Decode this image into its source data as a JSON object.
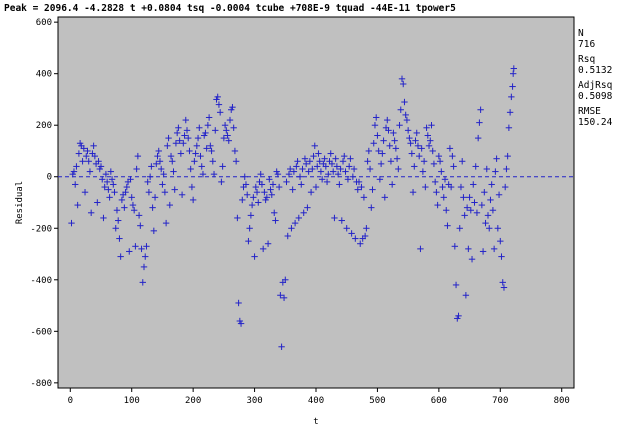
{
  "chart_data": {
    "type": "scatter",
    "title": "Peak = 2096.4 -4.2828 t +0.0804 tsq -0.0004 tcube +708E-9 tquad -44E-11 tpower5",
    "xlabel": "t",
    "ylabel": "Residual",
    "xlim": [
      -20,
      820
    ],
    "ylim": [
      -820,
      620
    ],
    "x_ticks": [
      0,
      100,
      200,
      300,
      400,
      500,
      600,
      700,
      800
    ],
    "y_ticks": [
      -800,
      -600,
      -400,
      -200,
      0,
      200,
      400,
      600
    ],
    "grid": false,
    "reference_line": 0,
    "plot_background": "#c0c0c0",
    "marker_color": "#2323c8",
    "marker": "plus",
    "stats": [
      {
        "label": "N",
        "value": "716"
      },
      {
        "label": "Rsq",
        "value": "0.5132"
      },
      {
        "label": "AdjRsq",
        "value": "0.5098"
      },
      {
        "label": "RMSE",
        "value": "150.24"
      }
    ],
    "points": [
      [
        2,
        -180
      ],
      [
        4,
        10
      ],
      [
        6,
        20
      ],
      [
        8,
        -30
      ],
      [
        10,
        40
      ],
      [
        12,
        -110
      ],
      [
        14,
        90
      ],
      [
        16,
        130
      ],
      [
        18,
        120
      ],
      [
        20,
        60
      ],
      [
        22,
        110
      ],
      [
        24,
        -60
      ],
      [
        26,
        80
      ],
      [
        28,
        100
      ],
      [
        30,
        60
      ],
      [
        32,
        20
      ],
      [
        34,
        -140
      ],
      [
        36,
        90
      ],
      [
        38,
        120
      ],
      [
        40,
        80
      ],
      [
        42,
        50
      ],
      [
        44,
        -100
      ],
      [
        46,
        60
      ],
      [
        48,
        30
      ],
      [
        50,
        40
      ],
      [
        52,
        -10
      ],
      [
        54,
        -160
      ],
      [
        56,
        -40
      ],
      [
        58,
        10
      ],
      [
        60,
        -20
      ],
      [
        62,
        -50
      ],
      [
        64,
        -80
      ],
      [
        66,
        20
      ],
      [
        68,
        -10
      ],
      [
        70,
        -30
      ],
      [
        72,
        -60
      ],
      [
        74,
        -200
      ],
      [
        76,
        -130
      ],
      [
        78,
        -170
      ],
      [
        80,
        -240
      ],
      [
        82,
        -310
      ],
      [
        84,
        -90
      ],
      [
        86,
        -70
      ],
      [
        88,
        -120
      ],
      [
        90,
        -60
      ],
      [
        92,
        -40
      ],
      [
        94,
        -20
      ],
      [
        96,
        -290
      ],
      [
        98,
        -10
      ],
      [
        100,
        -80
      ],
      [
        102,
        -110
      ],
      [
        104,
        -130
      ],
      [
        106,
        -270
      ],
      [
        108,
        30
      ],
      [
        110,
        80
      ],
      [
        112,
        -150
      ],
      [
        114,
        -190
      ],
      [
        116,
        -280
      ],
      [
        118,
        -410
      ],
      [
        120,
        -350
      ],
      [
        122,
        -310
      ],
      [
        124,
        -270
      ],
      [
        126,
        -20
      ],
      [
        128,
        -60
      ],
      [
        130,
        0
      ],
      [
        132,
        40
      ],
      [
        134,
        -120
      ],
      [
        136,
        -210
      ],
      [
        138,
        -80
      ],
      [
        140,
        50
      ],
      [
        142,
        80
      ],
      [
        144,
        100
      ],
      [
        146,
        60
      ],
      [
        148,
        30
      ],
      [
        150,
        -30
      ],
      [
        152,
        10
      ],
      [
        154,
        -60
      ],
      [
        156,
        -180
      ],
      [
        158,
        120
      ],
      [
        160,
        150
      ],
      [
        162,
        -110
      ],
      [
        164,
        80
      ],
      [
        166,
        60
      ],
      [
        168,
        20
      ],
      [
        170,
        -50
      ],
      [
        172,
        130
      ],
      [
        174,
        170
      ],
      [
        176,
        190
      ],
      [
        178,
        140
      ],
      [
        180,
        90
      ],
      [
        182,
        -70
      ],
      [
        184,
        130
      ],
      [
        186,
        160
      ],
      [
        188,
        220
      ],
      [
        190,
        180
      ],
      [
        192,
        150
      ],
      [
        194,
        100
      ],
      [
        196,
        30
      ],
      [
        198,
        -40
      ],
      [
        200,
        -90
      ],
      [
        202,
        60
      ],
      [
        204,
        90
      ],
      [
        206,
        120
      ],
      [
        208,
        150
      ],
      [
        210,
        190
      ],
      [
        212,
        80
      ],
      [
        214,
        40
      ],
      [
        216,
        10
      ],
      [
        218,
        160
      ],
      [
        220,
        170
      ],
      [
        222,
        110
      ],
      [
        224,
        200
      ],
      [
        226,
        230
      ],
      [
        228,
        120
      ],
      [
        230,
        100
      ],
      [
        232,
        60
      ],
      [
        234,
        10
      ],
      [
        236,
        180
      ],
      [
        238,
        300
      ],
      [
        240,
        310
      ],
      [
        242,
        280
      ],
      [
        244,
        250
      ],
      [
        246,
        -20
      ],
      [
        248,
        40
      ],
      [
        250,
        150
      ],
      [
        252,
        200
      ],
      [
        254,
        180
      ],
      [
        256,
        160
      ],
      [
        258,
        140
      ],
      [
        260,
        220
      ],
      [
        262,
        260
      ],
      [
        264,
        270
      ],
      [
        266,
        190
      ],
      [
        268,
        100
      ],
      [
        270,
        60
      ],
      [
        272,
        -160
      ],
      [
        274,
        -490
      ],
      [
        276,
        -560
      ],
      [
        278,
        -570
      ],
      [
        280,
        -90
      ],
      [
        282,
        -40
      ],
      [
        284,
        0
      ],
      [
        286,
        -30
      ],
      [
        288,
        -70
      ],
      [
        290,
        -250
      ],
      [
        292,
        -200
      ],
      [
        294,
        -150
      ],
      [
        296,
        -110
      ],
      [
        298,
        -80
      ],
      [
        300,
        -310
      ],
      [
        302,
        -40
      ],
      [
        304,
        -60
      ],
      [
        306,
        -100
      ],
      [
        308,
        -20
      ],
      [
        310,
        10
      ],
      [
        312,
        -30
      ],
      [
        314,
        -280
      ],
      [
        316,
        -60
      ],
      [
        318,
        -90
      ],
      [
        320,
        -80
      ],
      [
        322,
        -260
      ],
      [
        324,
        -10
      ],
      [
        326,
        -50
      ],
      [
        328,
        -70
      ],
      [
        330,
        -30
      ],
      [
        332,
        -140
      ],
      [
        334,
        -170
      ],
      [
        336,
        20
      ],
      [
        338,
        10
      ],
      [
        340,
        -40
      ],
      [
        342,
        -460
      ],
      [
        344,
        -660
      ],
      [
        346,
        -410
      ],
      [
        348,
        -470
      ],
      [
        350,
        -400
      ],
      [
        352,
        -20
      ],
      [
        354,
        -230
      ],
      [
        356,
        10
      ],
      [
        358,
        30
      ],
      [
        360,
        -200
      ],
      [
        362,
        -50
      ],
      [
        364,
        20
      ],
      [
        366,
        -180
      ],
      [
        368,
        40
      ],
      [
        370,
        60
      ],
      [
        372,
        -160
      ],
      [
        374,
        0
      ],
      [
        376,
        -30
      ],
      [
        378,
        30
      ],
      [
        380,
        -140
      ],
      [
        382,
        70
      ],
      [
        384,
        50
      ],
      [
        386,
        -120
      ],
      [
        388,
        20
      ],
      [
        390,
        60
      ],
      [
        392,
        -60
      ],
      [
        394,
        30
      ],
      [
        396,
        80
      ],
      [
        398,
        120
      ],
      [
        400,
        -40
      ],
      [
        402,
        40
      ],
      [
        404,
        90
      ],
      [
        406,
        60
      ],
      [
        408,
        20
      ],
      [
        410,
        -10
      ],
      [
        412,
        50
      ],
      [
        414,
        70
      ],
      [
        416,
        40
      ],
      [
        418,
        -20
      ],
      [
        420,
        10
      ],
      [
        422,
        60
      ],
      [
        424,
        90
      ],
      [
        426,
        50
      ],
      [
        428,
        20
      ],
      [
        430,
        -160
      ],
      [
        432,
        70
      ],
      [
        434,
        40
      ],
      [
        436,
        10
      ],
      [
        438,
        -30
      ],
      [
        440,
        30
      ],
      [
        442,
        -170
      ],
      [
        444,
        60
      ],
      [
        446,
        80
      ],
      [
        448,
        20
      ],
      [
        450,
        -200
      ],
      [
        452,
        -10
      ],
      [
        454,
        40
      ],
      [
        456,
        70
      ],
      [
        458,
        -220
      ],
      [
        460,
        0
      ],
      [
        462,
        30
      ],
      [
        464,
        -240
      ],
      [
        466,
        -20
      ],
      [
        468,
        -50
      ],
      [
        470,
        -20
      ],
      [
        472,
        -260
      ],
      [
        474,
        -40
      ],
      [
        476,
        -240
      ],
      [
        478,
        -80
      ],
      [
        480,
        -230
      ],
      [
        482,
        -200
      ],
      [
        484,
        60
      ],
      [
        486,
        100
      ],
      [
        488,
        30
      ],
      [
        490,
        -120
      ],
      [
        492,
        -50
      ],
      [
        494,
        130
      ],
      [
        496,
        200
      ],
      [
        498,
        230
      ],
      [
        500,
        160
      ],
      [
        502,
        100
      ],
      [
        504,
        -10
      ],
      [
        506,
        50
      ],
      [
        508,
        90
      ],
      [
        510,
        140
      ],
      [
        512,
        -80
      ],
      [
        514,
        190
      ],
      [
        516,
        220
      ],
      [
        518,
        180
      ],
      [
        520,
        120
      ],
      [
        522,
        60
      ],
      [
        524,
        -30
      ],
      [
        526,
        170
      ],
      [
        528,
        140
      ],
      [
        530,
        110
      ],
      [
        532,
        70
      ],
      [
        534,
        30
      ],
      [
        536,
        200
      ],
      [
        538,
        260
      ],
      [
        540,
        380
      ],
      [
        542,
        360
      ],
      [
        544,
        290
      ],
      [
        546,
        240
      ],
      [
        548,
        220
      ],
      [
        550,
        180
      ],
      [
        552,
        150
      ],
      [
        554,
        130
      ],
      [
        556,
        90
      ],
      [
        558,
        -60
      ],
      [
        560,
        40
      ],
      [
        562,
        140
      ],
      [
        564,
        170
      ],
      [
        566,
        120
      ],
      [
        568,
        80
      ],
      [
        570,
        -280
      ],
      [
        572,
        110
      ],
      [
        574,
        20
      ],
      [
        576,
        60
      ],
      [
        578,
        -40
      ],
      [
        580,
        190
      ],
      [
        582,
        160
      ],
      [
        584,
        120
      ],
      [
        586,
        140
      ],
      [
        588,
        200
      ],
      [
        590,
        100
      ],
      [
        592,
        50
      ],
      [
        594,
        -20
      ],
      [
        596,
        -60
      ],
      [
        598,
        -110
      ],
      [
        600,
        80
      ],
      [
        602,
        60
      ],
      [
        604,
        20
      ],
      [
        606,
        -40
      ],
      [
        608,
        -80
      ],
      [
        610,
        -10
      ],
      [
        612,
        -130
      ],
      [
        614,
        -190
      ],
      [
        616,
        -30
      ],
      [
        618,
        110
      ],
      [
        620,
        -40
      ],
      [
        622,
        80
      ],
      [
        624,
        40
      ],
      [
        626,
        -270
      ],
      [
        628,
        -420
      ],
      [
        630,
        -550
      ],
      [
        632,
        -540
      ],
      [
        634,
        -200
      ],
      [
        636,
        -40
      ],
      [
        638,
        60
      ],
      [
        640,
        -80
      ],
      [
        642,
        -150
      ],
      [
        644,
        -460
      ],
      [
        646,
        -120
      ],
      [
        648,
        -280
      ],
      [
        650,
        -80
      ],
      [
        652,
        -130
      ],
      [
        654,
        -320
      ],
      [
        656,
        -30
      ],
      [
        658,
        -100
      ],
      [
        660,
        40
      ],
      [
        662,
        -140
      ],
      [
        664,
        150
      ],
      [
        666,
        210
      ],
      [
        668,
        260
      ],
      [
        670,
        -110
      ],
      [
        672,
        -290
      ],
      [
        674,
        -60
      ],
      [
        676,
        -180
      ],
      [
        678,
        30
      ],
      [
        680,
        -150
      ],
      [
        682,
        -200
      ],
      [
        684,
        -90
      ],
      [
        686,
        -30
      ],
      [
        688,
        -130
      ],
      [
        690,
        -280
      ],
      [
        692,
        20
      ],
      [
        694,
        70
      ],
      [
        696,
        -200
      ],
      [
        698,
        -70
      ],
      [
        700,
        -250
      ],
      [
        702,
        -310
      ],
      [
        704,
        -410
      ],
      [
        706,
        -430
      ],
      [
        708,
        -40
      ],
      [
        710,
        30
      ],
      [
        712,
        80
      ],
      [
        714,
        190
      ],
      [
        716,
        250
      ],
      [
        718,
        310
      ],
      [
        720,
        350
      ],
      [
        721,
        400
      ],
      [
        722,
        420
      ]
    ]
  }
}
